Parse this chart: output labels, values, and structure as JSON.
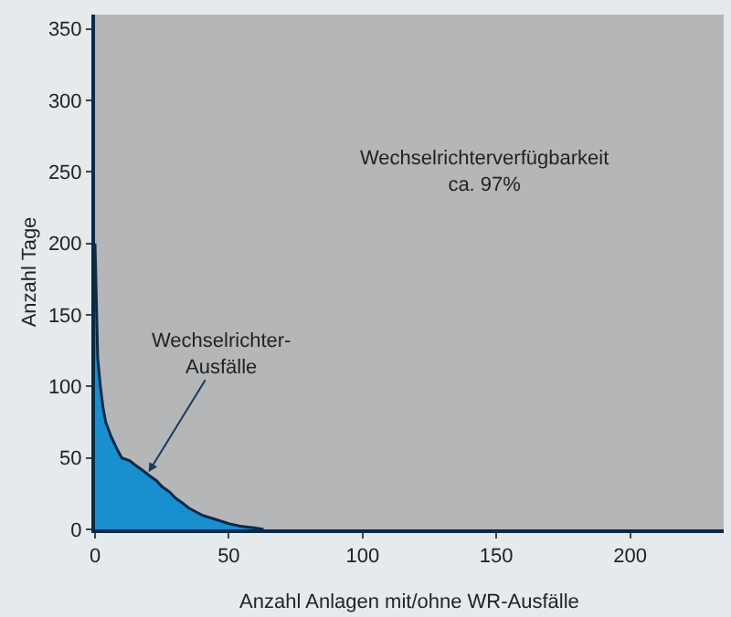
{
  "chart_data": {
    "type": "area",
    "xlabel": "Anzahl Anlagen mit/ohne WR-Ausfälle",
    "ylabel": "Anzahl Tage",
    "x": [
      0,
      1,
      2,
      3,
      4,
      6,
      8,
      10,
      13,
      15,
      18,
      20,
      23,
      25,
      28,
      30,
      33,
      35,
      38,
      40,
      45,
      50,
      55,
      60,
      63
    ],
    "series": [
      {
        "color": "#1a8fd0",
        "values": [
          200,
          120,
          100,
          85,
          75,
          65,
          57,
          50,
          48,
          45,
          41,
          38,
          34,
          30,
          26,
          22,
          18,
          15,
          12,
          10,
          7,
          4,
          2,
          1,
          0
        ]
      }
    ],
    "xlim": [
      0,
      235
    ],
    "ylim": [
      0,
      360
    ],
    "xticks": [
      0,
      50,
      100,
      150,
      200
    ],
    "yticks": [
      0,
      50,
      100,
      150,
      200,
      250,
      300,
      350
    ],
    "grid": false,
    "legend": false,
    "annotations": [
      "Wechselrichterverfügbarkeit\nca. 97%",
      {
        "text": "Wechselrichter-\nAusfälle",
        "x": 20,
        "y": 40
      }
    ]
  }
}
